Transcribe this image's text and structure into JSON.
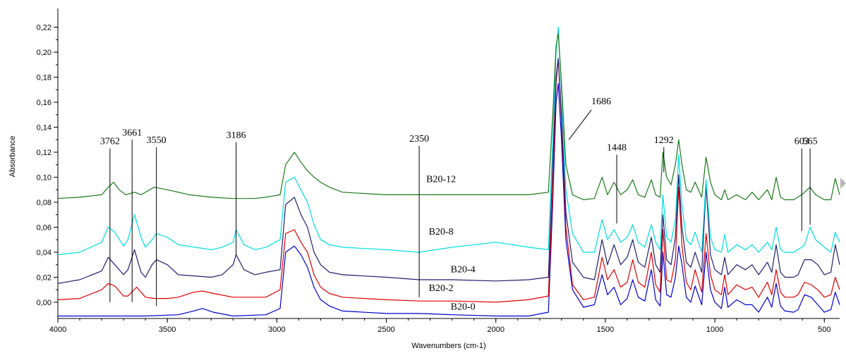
{
  "chart_data": {
    "type": "line",
    "title": "",
    "xlabel": "Wavenumbers (cm-1)",
    "ylabel": "Absorbance",
    "xlim": [
      4000,
      430
    ],
    "ylim": [
      -0.013,
      0.235
    ],
    "x_reversed": true,
    "grid": false,
    "x_ticks": [
      4000,
      3500,
      3000,
      2500,
      2000,
      1500,
      1000,
      500
    ],
    "x_tick_labels": [
      "4000",
      "3500",
      "3000",
      "2500",
      "2000",
      "1500",
      "1000",
      "500"
    ],
    "y_ticks": [
      0.0,
      0.02,
      0.04,
      0.06,
      0.08,
      0.1,
      0.12,
      0.14,
      0.16,
      0.18,
      0.2,
      0.22
    ],
    "y_tick_labels": [
      "0,00",
      "0,02",
      "0,04",
      "0,06",
      "0,08",
      "0,10",
      "0,12",
      "0,14",
      "0,16",
      "0,18",
      "0,20",
      "0,22"
    ],
    "series": [
      {
        "name": "B20-0",
        "color": "#0000cc",
        "label_at": [
          2150,
          -0.006
        ],
        "x": [
          4000,
          3800,
          3600,
          3450,
          3380,
          3340,
          3290,
          3200,
          3050,
          2985,
          2960,
          2920,
          2890,
          2860,
          2830,
          2800,
          2760,
          2700,
          2500,
          2350,
          2200,
          2000,
          1850,
          1760,
          1740,
          1725,
          1715,
          1700,
          1680,
          1650,
          1600,
          1550,
          1515,
          1490,
          1460,
          1430,
          1400,
          1375,
          1350,
          1320,
          1290,
          1270,
          1250,
          1237,
          1220,
          1200,
          1180,
          1165,
          1150,
          1130,
          1110,
          1090,
          1060,
          1040,
          1020,
          1000,
          970,
          955,
          940,
          900,
          860,
          830,
          800,
          760,
          740,
          720,
          700,
          680,
          640,
          620,
          590,
          560,
          530,
          500,
          470,
          450,
          430
        ],
        "y": [
          -0.011,
          -0.011,
          -0.011,
          -0.01,
          -0.007,
          -0.005,
          -0.008,
          -0.011,
          -0.01,
          -0.005,
          0.04,
          0.045,
          0.038,
          0.028,
          0.012,
          0.002,
          -0.003,
          -0.007,
          -0.009,
          -0.009,
          -0.01,
          -0.011,
          -0.011,
          -0.008,
          0.08,
          0.16,
          0.175,
          0.13,
          0.05,
          0.01,
          -0.004,
          -0.002,
          0.022,
          0.006,
          0.012,
          -0.002,
          0.003,
          0.018,
          0.004,
          0.001,
          0.026,
          0.002,
          -0.003,
          0.04,
          0.006,
          0.004,
          0.02,
          0.045,
          0.03,
          0.004,
          0.0,
          0.013,
          -0.002,
          0.04,
          0.01,
          0.0,
          -0.005,
          0.012,
          -0.004,
          0.002,
          -0.002,
          -0.002,
          -0.008,
          0.004,
          -0.004,
          0.015,
          -0.003,
          -0.007,
          -0.008,
          -0.006,
          0.006,
          0.004,
          -0.002,
          -0.008,
          -0.006,
          0.008,
          -0.002
        ]
      },
      {
        "name": "B20-2",
        "color": "#dd0000",
        "label_at": [
          2250,
          0.009
        ],
        "x": [
          4000,
          3900,
          3800,
          3770,
          3740,
          3700,
          3680,
          3640,
          3600,
          3560,
          3500,
          3450,
          3380,
          3340,
          3290,
          3200,
          3050,
          2985,
          2960,
          2920,
          2890,
          2860,
          2830,
          2800,
          2760,
          2700,
          2500,
          2350,
          2200,
          2000,
          1850,
          1760,
          1740,
          1725,
          1715,
          1700,
          1680,
          1650,
          1600,
          1550,
          1515,
          1490,
          1460,
          1430,
          1400,
          1375,
          1350,
          1320,
          1290,
          1270,
          1250,
          1237,
          1220,
          1200,
          1180,
          1165,
          1150,
          1130,
          1110,
          1090,
          1060,
          1040,
          1020,
          1000,
          970,
          955,
          940,
          900,
          860,
          830,
          800,
          760,
          740,
          720,
          700,
          680,
          640,
          620,
          590,
          560,
          530,
          500,
          470,
          450,
          430
        ],
        "y": [
          0.002,
          0.003,
          0.01,
          0.015,
          0.013,
          0.005,
          0.005,
          0.012,
          0.004,
          0.003,
          0.003,
          0.004,
          0.008,
          0.009,
          0.007,
          0.004,
          0.004,
          0.01,
          0.055,
          0.058,
          0.048,
          0.04,
          0.022,
          0.012,
          0.007,
          0.004,
          0.002,
          0.001,
          0.001,
          0.0,
          0.002,
          0.005,
          0.09,
          0.175,
          0.195,
          0.145,
          0.06,
          0.014,
          0.002,
          0.004,
          0.036,
          0.018,
          0.026,
          0.012,
          0.016,
          0.034,
          0.016,
          0.012,
          0.04,
          0.014,
          0.008,
          0.058,
          0.018,
          0.016,
          0.034,
          0.092,
          0.045,
          0.016,
          0.01,
          0.026,
          0.008,
          0.055,
          0.022,
          0.01,
          0.006,
          0.022,
          0.006,
          0.014,
          0.01,
          0.012,
          0.004,
          0.016,
          0.006,
          0.026,
          0.008,
          0.004,
          0.004,
          0.006,
          0.016,
          0.014,
          0.01,
          0.004,
          0.006,
          0.02,
          0.01
        ]
      },
      {
        "name": "B20-4",
        "color": "#1e1e6e",
        "label_at": [
          2150,
          0.024
        ],
        "x": [
          4000,
          3900,
          3800,
          3770,
          3740,
          3700,
          3680,
          3650,
          3620,
          3600,
          3570,
          3550,
          3500,
          3450,
          3300,
          3250,
          3200,
          3186,
          3150,
          3100,
          3050,
          2985,
          2960,
          2920,
          2890,
          2860,
          2830,
          2800,
          2760,
          2700,
          2500,
          2350,
          2200,
          2000,
          1850,
          1760,
          1740,
          1725,
          1715,
          1700,
          1680,
          1650,
          1600,
          1550,
          1515,
          1490,
          1460,
          1430,
          1400,
          1375,
          1350,
          1320,
          1290,
          1270,
          1250,
          1237,
          1220,
          1200,
          1180,
          1165,
          1150,
          1130,
          1110,
          1090,
          1060,
          1040,
          1020,
          1000,
          970,
          955,
          940,
          900,
          860,
          830,
          800,
          760,
          740,
          720,
          700,
          680,
          640,
          620,
          590,
          560,
          530,
          500,
          470,
          450,
          430
        ],
        "y": [
          0.015,
          0.018,
          0.025,
          0.036,
          0.03,
          0.022,
          0.026,
          0.042,
          0.024,
          0.02,
          0.03,
          0.034,
          0.03,
          0.022,
          0.02,
          0.022,
          0.03,
          0.038,
          0.026,
          0.022,
          0.024,
          0.026,
          0.078,
          0.084,
          0.07,
          0.06,
          0.04,
          0.03,
          0.024,
          0.022,
          0.02,
          0.018,
          0.018,
          0.017,
          0.018,
          0.02,
          0.11,
          0.18,
          0.195,
          0.15,
          0.072,
          0.032,
          0.02,
          0.018,
          0.05,
          0.03,
          0.046,
          0.03,
          0.036,
          0.05,
          0.032,
          0.028,
          0.052,
          0.03,
          0.024,
          0.07,
          0.034,
          0.03,
          0.052,
          0.102,
          0.06,
          0.032,
          0.028,
          0.04,
          0.024,
          0.094,
          0.038,
          0.026,
          0.022,
          0.036,
          0.022,
          0.03,
          0.026,
          0.03,
          0.022,
          0.032,
          0.024,
          0.046,
          0.024,
          0.02,
          0.02,
          0.022,
          0.034,
          0.034,
          0.03,
          0.022,
          0.024,
          0.046,
          0.03
        ]
      },
      {
        "name": "B20-8",
        "color": "#00dde0",
        "label_at": [
          2250,
          0.054
        ],
        "x": [
          4000,
          3900,
          3800,
          3770,
          3740,
          3700,
          3680,
          3650,
          3620,
          3600,
          3570,
          3550,
          3500,
          3450,
          3300,
          3250,
          3200,
          3186,
          3150,
          3100,
          3050,
          2985,
          2960,
          2920,
          2890,
          2860,
          2830,
          2800,
          2760,
          2700,
          2500,
          2350,
          2200,
          2000,
          1850,
          1760,
          1740,
          1725,
          1715,
          1700,
          1680,
          1650,
          1600,
          1550,
          1515,
          1490,
          1460,
          1430,
          1400,
          1375,
          1350,
          1320,
          1290,
          1270,
          1250,
          1237,
          1220,
          1200,
          1180,
          1165,
          1150,
          1130,
          1110,
          1090,
          1060,
          1040,
          1020,
          1000,
          970,
          955,
          940,
          900,
          860,
          830,
          800,
          760,
          740,
          720,
          700,
          680,
          640,
          603,
          590,
          565,
          540,
          500,
          470,
          450,
          430
        ],
        "y": [
          0.038,
          0.04,
          0.048,
          0.06,
          0.056,
          0.045,
          0.05,
          0.07,
          0.052,
          0.044,
          0.05,
          0.055,
          0.052,
          0.046,
          0.042,
          0.044,
          0.048,
          0.058,
          0.046,
          0.042,
          0.044,
          0.05,
          0.096,
          0.1,
          0.09,
          0.08,
          0.062,
          0.05,
          0.046,
          0.044,
          0.042,
          0.04,
          0.044,
          0.048,
          0.044,
          0.042,
          0.13,
          0.2,
          0.22,
          0.17,
          0.09,
          0.055,
          0.04,
          0.04,
          0.066,
          0.05,
          0.058,
          0.048,
          0.052,
          0.062,
          0.048,
          0.044,
          0.062,
          0.048,
          0.042,
          0.086,
          0.052,
          0.048,
          0.066,
          0.118,
          0.078,
          0.05,
          0.046,
          0.056,
          0.04,
          0.098,
          0.052,
          0.042,
          0.04,
          0.054,
          0.04,
          0.046,
          0.042,
          0.046,
          0.04,
          0.048,
          0.042,
          0.06,
          0.042,
          0.04,
          0.04,
          0.044,
          0.046,
          0.06,
          0.05,
          0.044,
          0.04,
          0.056,
          0.048
        ]
      },
      {
        "name": "B20-12",
        "color": "#1a7a1a",
        "label_at": [
          2250,
          0.096
        ],
        "x": [
          4000,
          3900,
          3800,
          3770,
          3745,
          3720,
          3690,
          3650,
          3620,
          3560,
          3500,
          3400,
          3300,
          3200,
          3100,
          3050,
          2985,
          2960,
          2920,
          2890,
          2860,
          2830,
          2800,
          2760,
          2700,
          2500,
          2350,
          2200,
          2000,
          1850,
          1760,
          1740,
          1725,
          1715,
          1700,
          1680,
          1650,
          1600,
          1550,
          1515,
          1490,
          1460,
          1430,
          1400,
          1375,
          1350,
          1320,
          1290,
          1270,
          1250,
          1237,
          1220,
          1200,
          1180,
          1165,
          1150,
          1130,
          1110,
          1090,
          1060,
          1040,
          1020,
          1000,
          970,
          955,
          940,
          900,
          860,
          830,
          800,
          760,
          740,
          720,
          700,
          680,
          640,
          603,
          590,
          565,
          540,
          500,
          470,
          450,
          430
        ],
        "y": [
          0.083,
          0.084,
          0.086,
          0.092,
          0.096,
          0.09,
          0.086,
          0.088,
          0.086,
          0.092,
          0.09,
          0.086,
          0.084,
          0.083,
          0.083,
          0.084,
          0.086,
          0.11,
          0.12,
          0.112,
          0.105,
          0.1,
          0.096,
          0.092,
          0.088,
          0.086,
          0.086,
          0.086,
          0.086,
          0.086,
          0.088,
          0.15,
          0.205,
          0.215,
          0.175,
          0.11,
          0.086,
          0.082,
          0.083,
          0.1,
          0.086,
          0.096,
          0.086,
          0.09,
          0.098,
          0.086,
          0.084,
          0.098,
          0.086,
          0.084,
          0.12,
          0.1,
          0.094,
          0.11,
          0.13,
          0.11,
          0.09,
          0.088,
          0.096,
          0.084,
          0.116,
          0.096,
          0.086,
          0.082,
          0.09,
          0.082,
          0.086,
          0.082,
          0.088,
          0.082,
          0.09,
          0.082,
          0.1,
          0.084,
          0.082,
          0.082,
          0.086,
          0.088,
          0.092,
          0.086,
          0.082,
          0.082,
          0.099,
          0.086
        ]
      }
    ],
    "annotations": [
      {
        "label": "3762",
        "x": 3762,
        "y_top": 0.123,
        "y_bottom": 0.0
      },
      {
        "label": "3661",
        "x": 3661,
        "y_top": 0.13,
        "y_bottom": 0.0
      },
      {
        "label": "3550",
        "x": 3550,
        "y_top": 0.124,
        "y_bottom": -0.003
      },
      {
        "label": "3186",
        "x": 3186,
        "y_top": 0.128,
        "y_bottom": 0.038
      },
      {
        "label": "2350",
        "x": 2350,
        "y_top": 0.125,
        "y_bottom": 0.004
      },
      {
        "label": "1686",
        "x": 1686,
        "y_top": 0.155,
        "y_bottom": 0.13,
        "diagonal": true
      },
      {
        "label": "1448",
        "x": 1448,
        "y_top": 0.118,
        "y_bottom": 0.063
      },
      {
        "label": "1292",
        "x": 1233,
        "y_top": 0.124,
        "y_bottom": 0.104
      },
      {
        "label": "603",
        "x": 603,
        "y_top": 0.123,
        "y_bottom": 0.057
      },
      {
        "label": "565",
        "x": 565,
        "y_top": 0.123,
        "y_bottom": 0.062
      }
    ]
  }
}
